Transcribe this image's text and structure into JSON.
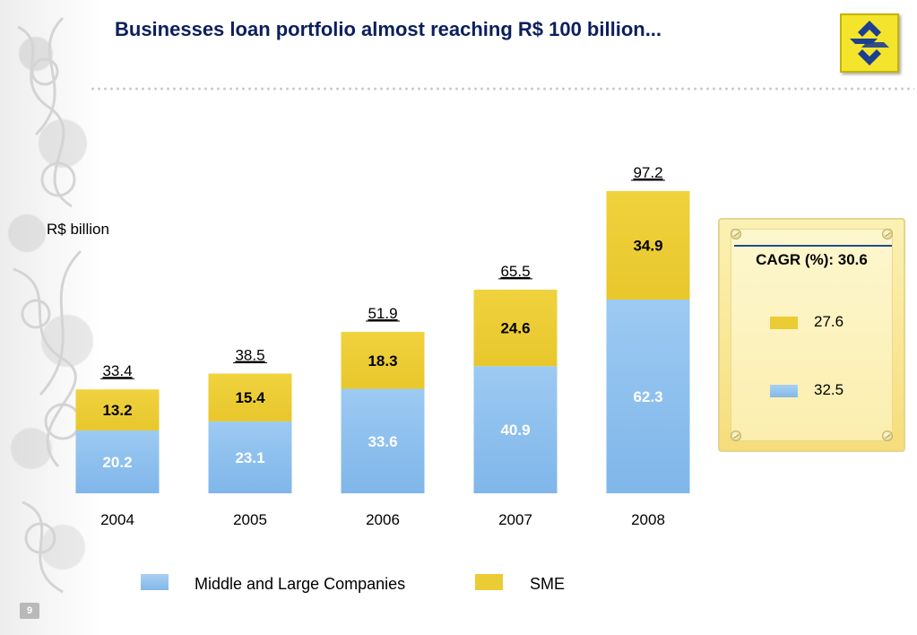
{
  "slide": {
    "title": "Businesses loan portfolio almost reaching R$ 100 billion...",
    "unit_label": "R$ billion",
    "page_number": "9"
  },
  "cagr": {
    "title": "CAGR (%): 30.6",
    "items": [
      {
        "series": "SME",
        "value": "27.6",
        "color": "#eccc34"
      },
      {
        "series": "Middle and Large Companies",
        "value": "32.5",
        "color": "#8fbfec"
      }
    ]
  },
  "legend": {
    "items": [
      {
        "label": "Middle and Large Companies",
        "color": "#8fbfec"
      },
      {
        "label": "SME",
        "color": "#eccc34"
      }
    ]
  },
  "chart_data": {
    "type": "bar",
    "stacked": true,
    "categories": [
      "2004",
      "2005",
      "2006",
      "2007",
      "2008"
    ],
    "series": [
      {
        "name": "Middle and Large Companies",
        "values": [
          20.2,
          23.1,
          33.6,
          40.9,
          62.3
        ],
        "color": "#8fbfec"
      },
      {
        "name": "SME",
        "values": [
          13.2,
          15.4,
          18.3,
          24.6,
          34.9
        ],
        "color": "#eccc34"
      }
    ],
    "totals": [
      33.4,
      38.5,
      51.9,
      65.5,
      97.2
    ],
    "ylabel": "R$ billion",
    "ylim": [
      0,
      97.2
    ],
    "grid": false,
    "legend_position": "bottom"
  }
}
